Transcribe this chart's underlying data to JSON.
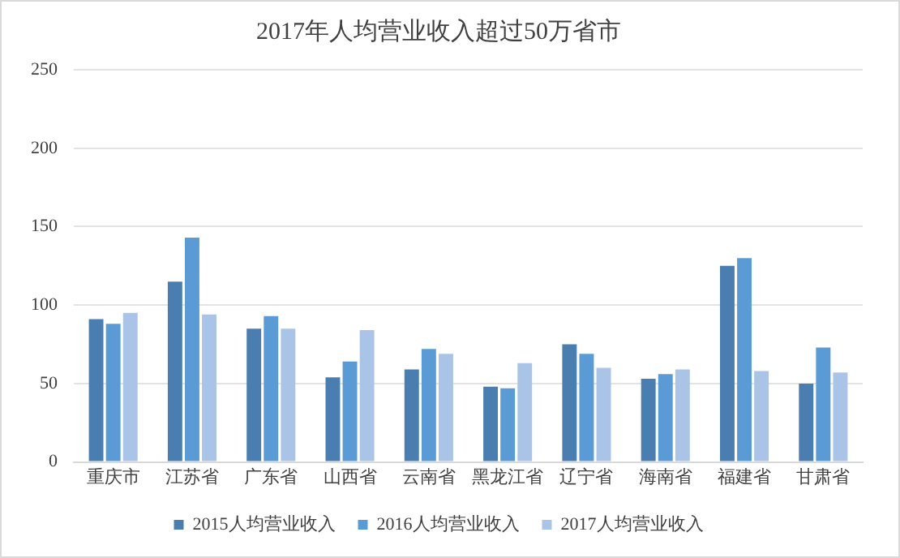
{
  "chart_data": {
    "type": "bar",
    "title": "2017年人均营业收入超过50万省市",
    "categories": [
      "重庆市",
      "江苏省",
      "广东省",
      "山西省",
      "云南省",
      "黑龙江省",
      "辽宁省",
      "海南省",
      "福建省",
      "甘肃省"
    ],
    "series": [
      {
        "name": "2015人均营业收入",
        "color": "#4a7eb0",
        "values": [
          91,
          115,
          85,
          54,
          59,
          48,
          75,
          53,
          125,
          50
        ]
      },
      {
        "name": "2016人均营业收入",
        "color": "#5b9bd5",
        "values": [
          88,
          143,
          93,
          64,
          72,
          47,
          69,
          56,
          130,
          73
        ]
      },
      {
        "name": "2017人均营业收入",
        "color": "#a9c4e6",
        "values": [
          95,
          94,
          85,
          84,
          69,
          63,
          60,
          59,
          58,
          57
        ]
      }
    ],
    "ylim": [
      0,
      250
    ],
    "yticks": [
      0,
      50,
      100,
      150,
      200,
      250
    ],
    "grid": "y",
    "legend": "bottom"
  }
}
